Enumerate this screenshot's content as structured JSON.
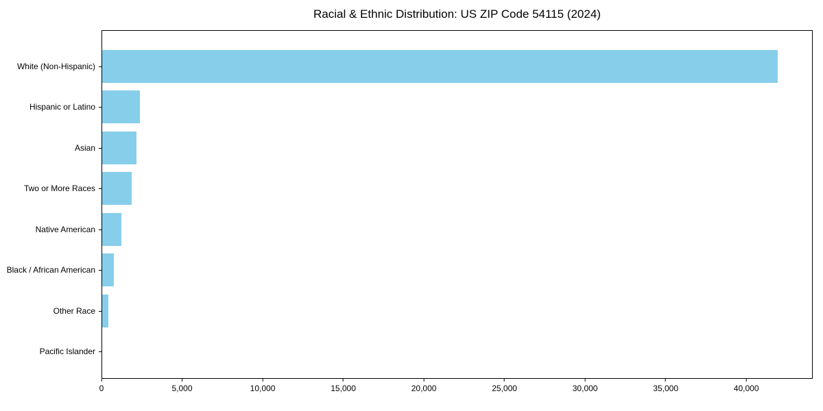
{
  "title": "Racial & Ethnic Distribution: US ZIP Code 54115 (2024)",
  "colors": {
    "bar": "#87CEEB",
    "axis": "#000000",
    "background": "#FFFFFF"
  },
  "chart_data": {
    "type": "bar",
    "orientation": "horizontal",
    "title": "Racial & Ethnic Distribution: US ZIP Code 54115 (2024)",
    "categories": [
      "White (Non-Hispanic)",
      "Hispanic or Latino",
      "Asian",
      "Two or More Races",
      "Native American",
      "Black / African American",
      "Other Race",
      "Pacific Islander"
    ],
    "values": [
      42000,
      2350,
      2140,
      1820,
      1190,
      720,
      400,
      0
    ],
    "bar_color": "#87CEEB",
    "xlabel": "",
    "ylabel": "",
    "xlim": [
      0,
      44120
    ],
    "xticks": [
      0,
      5000,
      10000,
      15000,
      20000,
      25000,
      30000,
      35000,
      40000
    ],
    "xtick_labels": [
      "0",
      "5,000",
      "10,000",
      "15,000",
      "20,000",
      "25,000",
      "30,000",
      "35,000",
      "40,000"
    ],
    "grid": false,
    "legend": null
  }
}
